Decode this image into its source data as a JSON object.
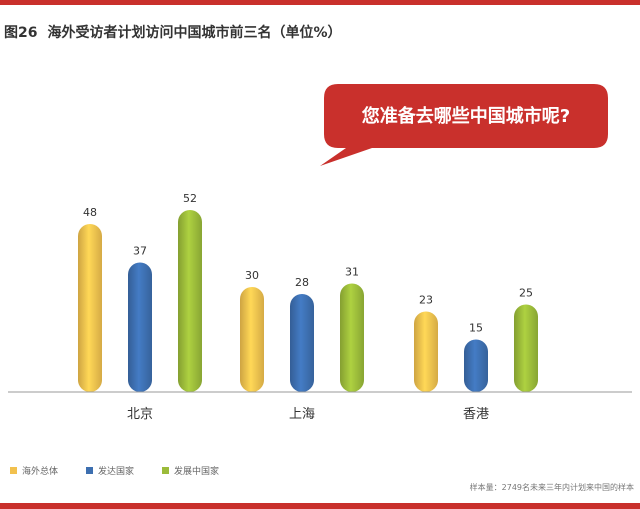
{
  "header": {
    "figure_number": "图26",
    "title": "海外受访者计划访问中国城市前三名（单位%）"
  },
  "callout": {
    "text": "您准备去哪些中国城市呢?"
  },
  "chart_data": {
    "type": "bar",
    "categories": [
      "北京",
      "上海",
      "香港"
    ],
    "series": [
      {
        "name": "海外总体",
        "values": [
          48,
          30,
          23
        ],
        "color": "#f2c14e"
      },
      {
        "name": "发达国家",
        "values": [
          37,
          28,
          15
        ],
        "color": "#3d6fb0"
      },
      {
        "name": "发展中国家",
        "values": [
          52,
          31,
          25
        ],
        "color": "#9bbb3a"
      }
    ],
    "ylim": [
      0,
      52
    ],
    "legend_position": "bottom-left"
  },
  "source": "样本量：2749名未来三年内计划来中国的样本",
  "colors": {
    "accent": "#c9302c",
    "axis": "#999999"
  }
}
